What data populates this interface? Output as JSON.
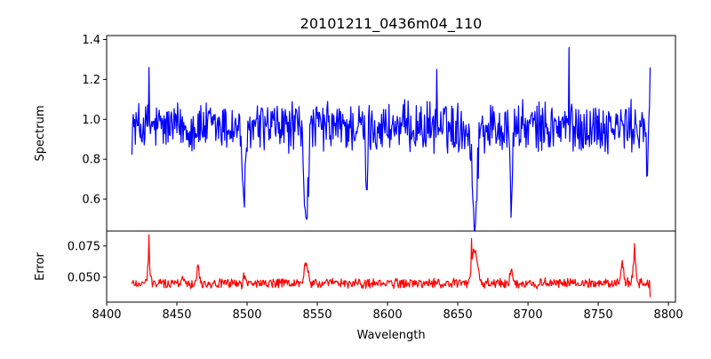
{
  "chart_data": {
    "title": "20101211_0436m04_110",
    "xlabel": "Wavelength",
    "xlim": [
      8400,
      8805
    ],
    "x_ticks": [
      8400,
      8450,
      8500,
      8550,
      8600,
      8650,
      8700,
      8750,
      8800
    ],
    "wavelength_range": [
      8418,
      8787
    ],
    "panels": [
      {
        "type": "line",
        "ylabel": "Spectrum",
        "color": "#0000ff",
        "ylim": [
          0.44,
          1.42
        ],
        "y_ticks": [
          0.6,
          0.8,
          1.0,
          1.2,
          1.4
        ],
        "y_tick_labels": [
          "0.6",
          "0.8",
          "1.0",
          "1.2",
          "1.4"
        ],
        "continuum": 0.96,
        "noise": 0.11,
        "features": [
          {
            "center": 8498,
            "depth": 0.34,
            "width": 1.4
          },
          {
            "center": 8542,
            "depth": 0.44,
            "width": 1.5
          },
          {
            "center": 8585,
            "depth": 0.32,
            "width": 0.7
          },
          {
            "center": 8662,
            "depth": 0.48,
            "width": 1.6
          },
          {
            "center": 8688,
            "depth": 0.5,
            "width": 0.6
          },
          {
            "center": 8785,
            "depth": 0.3,
            "width": 0.5
          }
        ],
        "spikes": [
          {
            "x": 8430,
            "y": 1.26
          },
          {
            "x": 8635,
            "y": 1.25
          },
          {
            "x": 8729,
            "y": 1.36
          },
          {
            "x": 8787,
            "y": 1.26
          }
        ]
      },
      {
        "type": "line",
        "ylabel": "Error",
        "color": "#ff0000",
        "ylim": [
          0.03,
          0.087
        ],
        "y_ticks": [
          0.05,
          0.075
        ],
        "y_tick_labels": [
          "0.050",
          "0.075"
        ],
        "continuum": 0.045,
        "noise": 0.0035,
        "features": [
          {
            "center": 8430,
            "depth": -0.02,
            "width": 0.8
          },
          {
            "center": 8454,
            "depth": -0.008,
            "width": 0.6
          },
          {
            "center": 8465,
            "depth": -0.015,
            "width": 0.8
          },
          {
            "center": 8498,
            "depth": -0.007,
            "width": 0.6
          },
          {
            "center": 8542,
            "depth": -0.017,
            "width": 1.3
          },
          {
            "center": 8662,
            "depth": -0.028,
            "width": 1.8
          },
          {
            "center": 8688,
            "depth": -0.012,
            "width": 0.8
          },
          {
            "center": 8767,
            "depth": -0.018,
            "width": 1.0
          },
          {
            "center": 8776,
            "depth": -0.023,
            "width": 1.0
          }
        ],
        "spikes": [
          {
            "x": 8430,
            "y": 0.084
          },
          {
            "x": 8660,
            "y": 0.081
          },
          {
            "x": 8776,
            "y": 0.077
          },
          {
            "x": 8787,
            "y": 0.034
          }
        ]
      }
    ]
  }
}
